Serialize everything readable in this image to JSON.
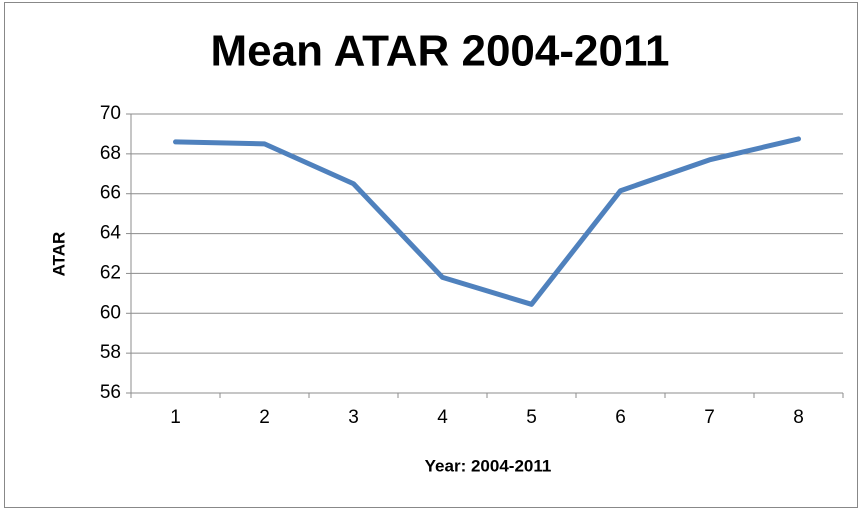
{
  "chart_data": {
    "type": "line",
    "title": "Mean ATAR 2004-2011",
    "x_label": "Year: 2004-2011",
    "y_label": "ATAR",
    "categories": [
      "1",
      "2",
      "3",
      "4",
      "5",
      "6",
      "7",
      "8"
    ],
    "series": [
      {
        "name": "ATAR",
        "color": "#4f81bd",
        "values": [
          68.6,
          68.5,
          66.5,
          61.8,
          60.45,
          66.15,
          67.7,
          68.75
        ]
      }
    ],
    "ylim": [
      56,
      70
    ],
    "yticks": [
      56,
      58,
      60,
      62,
      64,
      66,
      68,
      70
    ],
    "grid": true,
    "legend": false
  }
}
